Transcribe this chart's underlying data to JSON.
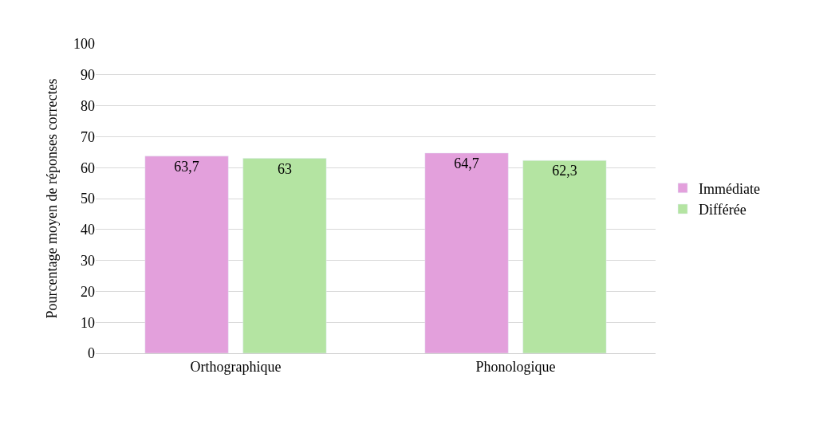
{
  "chart_data": {
    "type": "bar",
    "ylabel": "Pourcentage moyen de réponses correctes",
    "categories": [
      "Orthographique",
      "Phonologique"
    ],
    "series": [
      {
        "name": "Immédiate",
        "color": "#e3a0dc",
        "values": [
          63.7,
          64.7
        ],
        "value_labels": [
          "63,7",
          "64,7"
        ]
      },
      {
        "name": "Différée",
        "color": "#b4e4a2",
        "values": [
          63,
          62.3
        ],
        "value_labels": [
          "63",
          "62,3"
        ]
      }
    ],
    "ylim": [
      0,
      100
    ],
    "yticks": [
      0,
      10,
      20,
      30,
      40,
      50,
      60,
      70,
      80,
      90,
      100
    ],
    "grid": "y",
    "legend": "right"
  }
}
